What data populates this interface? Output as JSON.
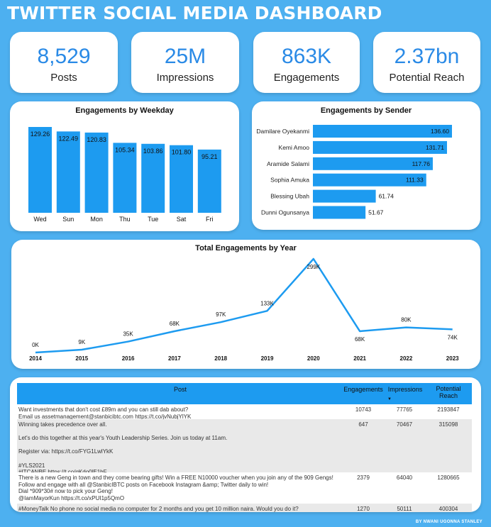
{
  "title": "TWITTER SOCIAL MEDIA DASHBOARD",
  "kpis": [
    {
      "value": "8,529",
      "label": "Posts"
    },
    {
      "value": "25M",
      "label": "Impressions"
    },
    {
      "value": "863K",
      "label": "Engagements"
    },
    {
      "value": "2.37bn",
      "label": "Potential Reach"
    }
  ],
  "chart_data": [
    {
      "type": "bar",
      "title": "Engagements by Weekday",
      "categories": [
        "Wed",
        "Sun",
        "Mon",
        "Thu",
        "Tue",
        "Sat",
        "Fri"
      ],
      "values": [
        129.26,
        122.49,
        120.83,
        105.34,
        103.86,
        101.8,
        95.21
      ],
      "labels": [
        "129.26",
        "122.49",
        "120.83",
        "105.34",
        "103.86",
        "101.80",
        "95.21"
      ],
      "color": "#1d9bf0"
    },
    {
      "type": "bar",
      "orientation": "horizontal",
      "title": "Engagements by Sender",
      "categories": [
        "Damilare Oyekanmi",
        "Kemi Amoo",
        "Aramide Salami",
        "Sophia Amuka",
        "Blessing Ubah",
        "Dunni Ogunsanya"
      ],
      "values": [
        136.6,
        131.71,
        117.76,
        111.33,
        61.74,
        51.67
      ],
      "labels": [
        "136.60",
        "131.71",
        "117.76",
        "111.33",
        "61.74",
        "51.67"
      ],
      "color": "#1d9bf0"
    },
    {
      "type": "line",
      "title": "Total Engagements by Year",
      "x": [
        "2014",
        "2015",
        "2016",
        "2017",
        "2018",
        "2019",
        "2020",
        "2021",
        "2022",
        "2023"
      ],
      "values": [
        0,
        9,
        35,
        68,
        97,
        133,
        299,
        68,
        80,
        74
      ],
      "labels": [
        "0K",
        "9K",
        "35K",
        "68K",
        "97K",
        "133K",
        "299K",
        "68K",
        "80K",
        "74K"
      ],
      "color": "#1d9bf0"
    }
  ],
  "table": {
    "headers": {
      "post": "Post",
      "engagements": "Engagements",
      "impressions": "Impressions",
      "reach": "Potential Reach"
    },
    "sort_icon": "sort-down-icon",
    "rows": [
      {
        "post": "Want investments that don't cost £89m and you can still dab about?\nEmail us assetmanagement@stanbicibtc.com https://t.co/jvNubjYlYK",
        "engagements": "10743",
        "impressions": "77765",
        "reach": "2193847"
      },
      {
        "post": "Winning takes precedence over all.\n\nLet's do this together at this year's Youth Leadership Series. Join us today at 11am.\n\nRegister via: https://t.co/FYG1LwlYkK\n\n#YLS2021\n#ITCANBE https://t.co/qKdo0lE1bF",
        "engagements": "647",
        "impressions": "70467",
        "reach": "315098"
      },
      {
        "post": "There is a new Geng in town and they come bearing gifts! Win a FREE N10000 voucher when you join any of the 909 Gengs! Follow and engage with all @StanbicIBTC posts on Facebook Instagram &amp; Twitter daily to win!\nDial *909*30# now to pick your Geng!\n@IamMayorKun https://t.co/xPUI1p5QmO",
        "engagements": "2379",
        "impressions": "64040",
        "reach": "1280665"
      },
      {
        "post": "#MoneyTalk No phone no social media no computer for 2 months and you get 10 million naira. Would you do it?",
        "engagements": "1270",
        "impressions": "50111",
        "reach": "400304"
      }
    ]
  },
  "footer": "BY NWANI UGONNA STANLEY"
}
